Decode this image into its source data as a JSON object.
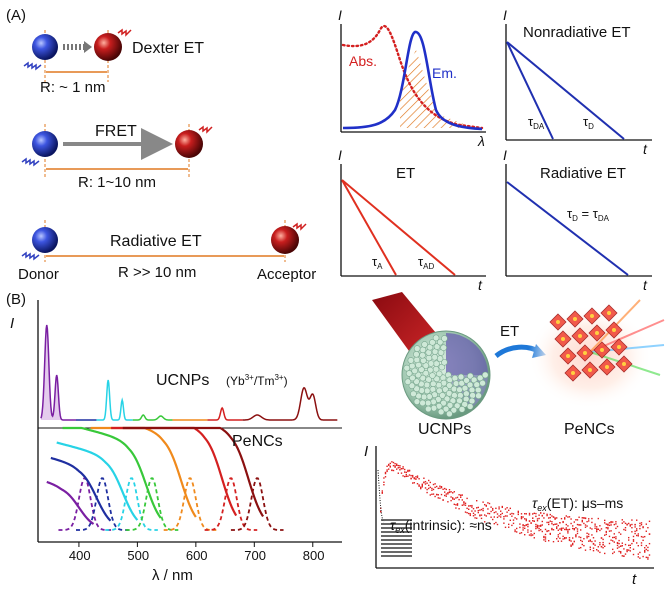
{
  "panel_a": {
    "label": "(A)",
    "dexter": {
      "label": "Dexter ET",
      "distance": "R: ~ 1 nm"
    },
    "fret": {
      "label": "FRET",
      "distance": "R: 1~10 nm"
    },
    "radiative": {
      "label": "Radiative ET",
      "distance": "R >> 10 nm"
    },
    "donor": "Donor",
    "acceptor": "Acceptor",
    "plot_overlap": {
      "ylabel": "I",
      "xlabel": "λ",
      "abs": "Abs.",
      "em": "Em."
    },
    "plot_nonrad": {
      "title": "Nonradiative ET",
      "ylabel": "I",
      "xlabel": "t",
      "tau_da": "τ",
      "tau_da_sub": "DA",
      "tau_d": "τ",
      "tau_d_sub": "D"
    },
    "plot_et": {
      "title": "ET",
      "ylabel": "I",
      "xlabel": "t",
      "tau_a": "τ",
      "tau_a_sub": "A",
      "tau_ad": "τ",
      "tau_ad_sub": "AD"
    },
    "plot_rad": {
      "title": "Radiative ET",
      "ylabel": "I",
      "xlabel": "t",
      "eq_lhs": "τ",
      "eq_lhs_sub": "D",
      "eq_mid": " = τ",
      "eq_rhs_sub": "DA"
    }
  },
  "panel_b": {
    "label": "(B)",
    "spectra": {
      "ylabel": "I",
      "ucnp_label": "UCNPs",
      "ucnp_formula": "(Yb",
      "ucnp_sup1": "3+",
      "ucnp_mid": "/Tm",
      "ucnp_sup2": "3+",
      "ucnp_end": ")",
      "penc_label": "PeNCs",
      "xlabel": "λ / nm",
      "xticks": [
        "400",
        "500",
        "600",
        "700",
        "800"
      ],
      "colors": {
        "purple": "#7a1fa2",
        "blue": "#1f2fa0",
        "cyan": "#27d3e6",
        "green": "#38c83a",
        "orange": "#f08a1c",
        "red": "#d42020",
        "darkred": "#8b1010"
      }
    },
    "illustration": {
      "et_label": "ET",
      "ucnp_label": "UCNPs",
      "penc_label": "PeNCs"
    },
    "decay": {
      "ylabel": "I",
      "xlabel": "t",
      "intrinsic_tau": "τ",
      "intrinsic_sub": "ex",
      "intrinsic_text": "(intrinsic): ≈ns",
      "et_tau": "τ",
      "et_sub": "ex",
      "et_text": "(ET): μs–ms"
    }
  }
}
